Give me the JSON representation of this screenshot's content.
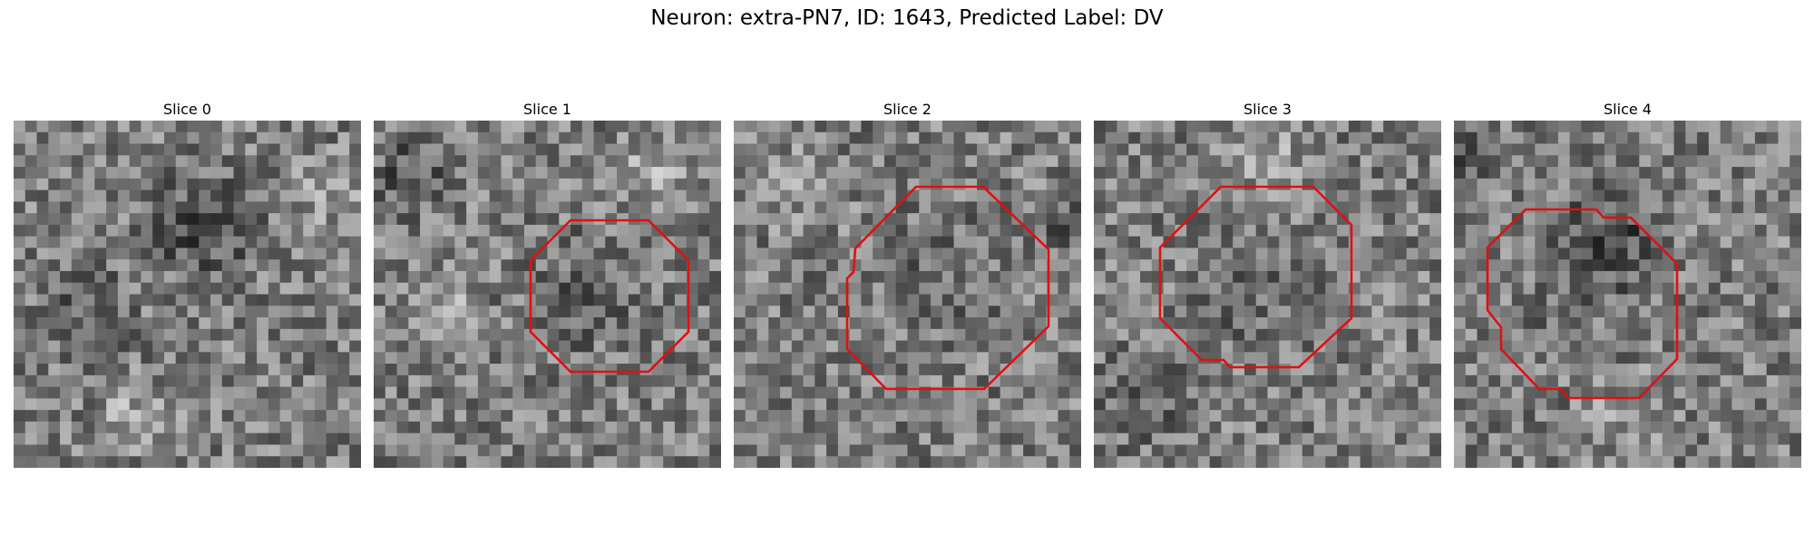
{
  "figure": {
    "title": "Neuron: extra-PN7, ID: 1643, Predicted Label: DV",
    "colormap": "grayscale",
    "contour_color": "#e01010"
  },
  "slices": [
    {
      "label": "Slice 0",
      "has_contour": false
    },
    {
      "label": "Slice 1",
      "has_contour": true
    },
    {
      "label": "Slice 2",
      "has_contour": true
    },
    {
      "label": "Slice 3",
      "has_contour": true
    },
    {
      "label": "Slice 4",
      "has_contour": true
    }
  ]
}
